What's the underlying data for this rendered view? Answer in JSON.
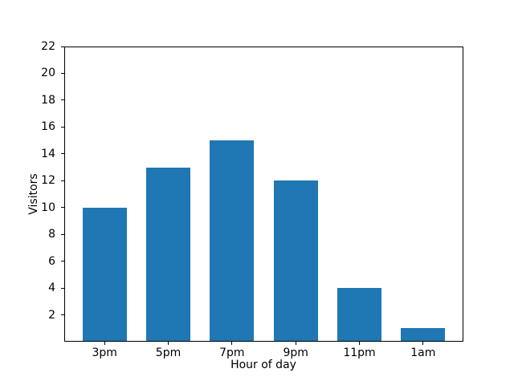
{
  "chart_data": {
    "type": "bar",
    "title": "",
    "xlabel": "Hour of day",
    "ylabel": "Visitors",
    "categories": [
      "3pm",
      "5pm",
      "7pm",
      "9pm",
      "11pm",
      "1am"
    ],
    "values": [
      10,
      13,
      15,
      12,
      4,
      1
    ],
    "ylim": [
      0,
      22
    ],
    "yticks": [
      2,
      4,
      6,
      8,
      10,
      12,
      14,
      16,
      18,
      20,
      22
    ],
    "bar_color": "#1f77b4",
    "spine_color": "#000000",
    "background_color": "#ffffff",
    "grid": false,
    "legend": "none"
  }
}
